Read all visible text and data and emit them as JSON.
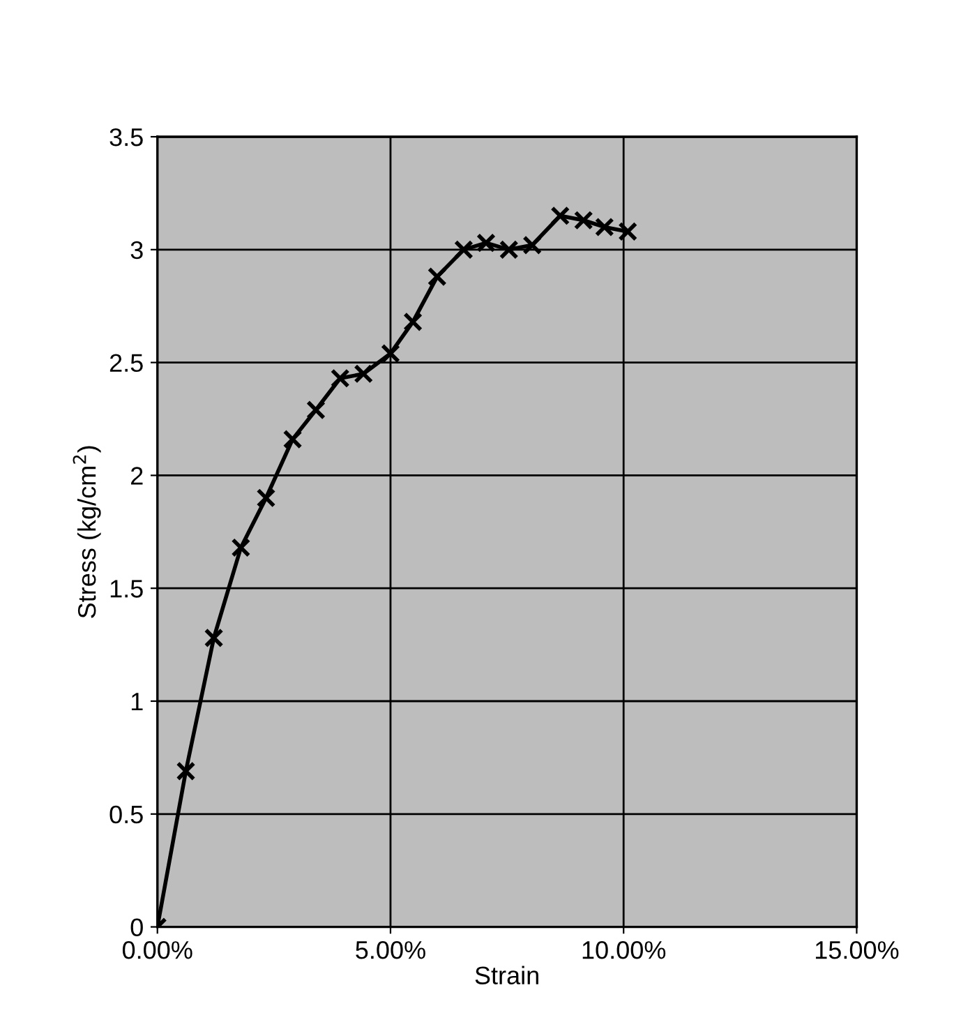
{
  "chart_data": {
    "type": "line",
    "xlabel": "Strain",
    "ylabel": "Stress (kg/cm$^{2}$)",
    "x": [
      0,
      0.0061,
      0.0121,
      0.0179,
      0.0233,
      0.029,
      0.034,
      0.0392,
      0.0442,
      0.05,
      0.0548,
      0.06,
      0.0657,
      0.0705,
      0.0754,
      0.0804,
      0.0864,
      0.0914,
      0.0959,
      0.1009
    ],
    "series": [
      {
        "color": "#000000",
        "values": [
          0,
          0.69,
          1.28,
          1.68,
          1.9,
          2.16,
          2.29,
          2.43,
          2.45,
          2.54,
          2.68,
          2.88,
          3.0,
          3.03,
          3.0,
          3.02,
          3.15,
          3.13,
          3.1,
          3.08
        ]
      }
    ],
    "xlim": [
      0,
      0.15
    ],
    "ylim": [
      0,
      3.5
    ],
    "xticks": [
      {
        "value": 0,
        "label": "0.00%"
      },
      {
        "value": 0.05,
        "label": "5.00%"
      },
      {
        "value": 0.1,
        "label": "10.00%"
      },
      {
        "value": 0.15,
        "label": "15.00%"
      }
    ],
    "yticks": [
      0,
      0.5,
      1,
      1.5,
      2,
      2.5,
      3,
      3.5
    ],
    "grid": true,
    "marker": "cross",
    "line_style": "solid"
  }
}
